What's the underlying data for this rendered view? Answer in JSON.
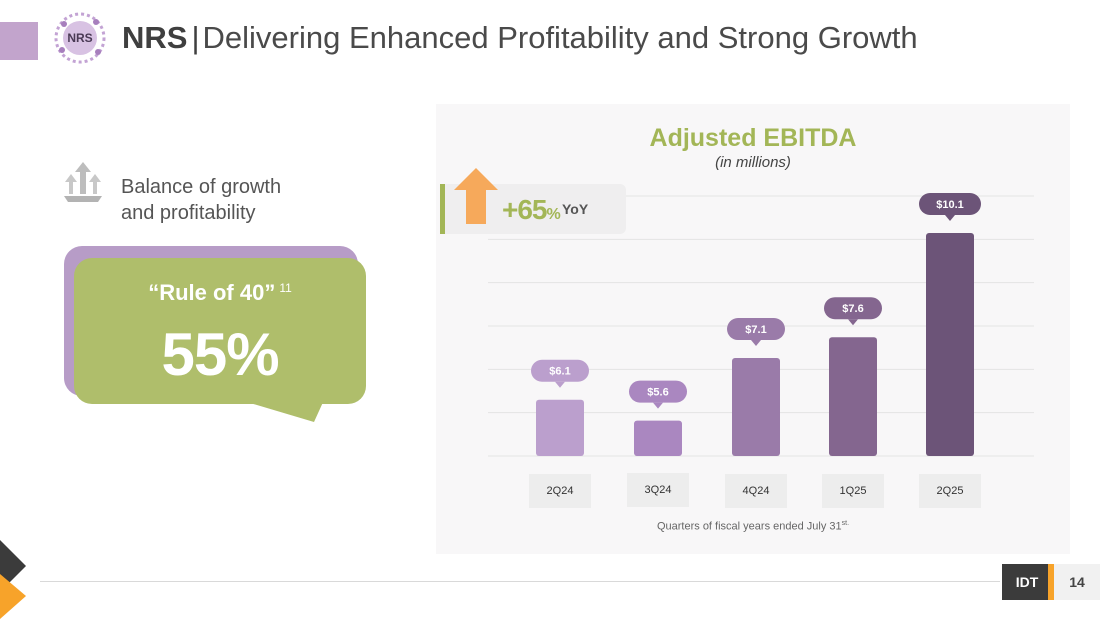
{
  "header": {
    "brand": "NRS",
    "separator": "|",
    "title": "Delivering Enhanced Profitability and Strong Growth",
    "logo_text": "NRS"
  },
  "left_panel": {
    "balance_line1": "Balance of growth",
    "balance_line2": "and profitability",
    "rule_label": "“Rule of 40”",
    "rule_footnote": "11",
    "rule_value": "55%"
  },
  "yoy": {
    "value": "+65",
    "unit": "%",
    "label": "YoY"
  },
  "chart_data": {
    "type": "bar",
    "title": "Adjusted EBITDA",
    "subtitle": "(in millions)",
    "categories": [
      "2Q24",
      "3Q24",
      "4Q24",
      "1Q25",
      "2Q25"
    ],
    "values": [
      6.1,
      5.6,
      7.1,
      7.6,
      10.1
    ],
    "data_labels": [
      "$6.1",
      "$5.6",
      "$7.1",
      "$7.6",
      "$10.1"
    ],
    "bar_colors": [
      "#bb9fcd",
      "#aa87c0",
      "#9a7ba9",
      "#84668f",
      "#6c5478"
    ],
    "xlabel": "Quarters of fiscal years ended July 31",
    "xlabel_superscript": "st.",
    "ylabel": "",
    "grid": true
  },
  "footer": {
    "company": "IDT",
    "page_number": "14"
  },
  "colors": {
    "green": "#a3b657",
    "purple": "#b79cc7",
    "orange": "#f7a32a",
    "dark": "#3b3b3b"
  }
}
